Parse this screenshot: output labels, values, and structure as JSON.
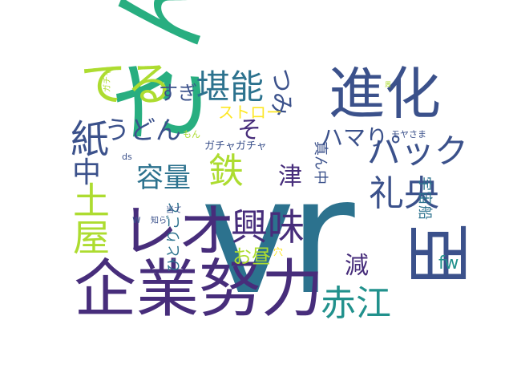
{
  "colors": {
    "background": "#ffffff",
    "dark_purple": "#472d7b",
    "indigo": "#3b518b",
    "blue": "#2c728e",
    "teal": "#21918c",
    "green": "#28ae80",
    "light_green": "#5ec962",
    "yellow_green": "#addc30",
    "yellow": "#fde725"
  },
  "words": [
    {
      "text": "vr",
      "color": "#2c728e"
    },
    {
      "text": "さん",
      "color": "#28ae80"
    },
    {
      "text": "企業努力",
      "color": "#472d7b"
    },
    {
      "text": "進化",
      "color": "#3b518b"
    },
    {
      "text": "レオ",
      "color": "#472d7b"
    },
    {
      "text": "てる",
      "color": "#addc30"
    },
    {
      "text": "臣",
      "color": "#3b518b"
    },
    {
      "text": "土屋",
      "color": "#addc30"
    },
    {
      "text": "興味",
      "color": "#472d7b"
    },
    {
      "text": "堪能",
      "color": "#2c728e"
    },
    {
      "text": "紙",
      "color": "#3b518b"
    },
    {
      "text": "パック",
      "color": "#3b518b"
    },
    {
      "text": "礼央",
      "color": "#3b518b"
    },
    {
      "text": "赤江",
      "color": "#21918c"
    },
    {
      "text": "鉄",
      "color": "#addc30"
    },
    {
      "text": "容量",
      "color": "#2c728e"
    },
    {
      "text": "うどん",
      "color": "#3b518b"
    },
    {
      "text": "中",
      "color": "#3b518b"
    },
    {
      "text": "つみ",
      "color": "#3b518b"
    },
    {
      "text": "そ",
      "color": "#472d7b"
    },
    {
      "text": "津",
      "color": "#472d7b"
    },
    {
      "text": "ハマり",
      "color": "#3b518b"
    },
    {
      "text": "すぎ",
      "color": "#3b518b"
    },
    {
      "text": "ストロー",
      "color": "#fde725"
    },
    {
      "text": "減",
      "color": "#472d7b"
    },
    {
      "text": "お昼",
      "color": "#addc30"
    },
    {
      "text": "真ん中",
      "color": "#3b518b"
    },
    {
      "text": "宇宙船",
      "color": "#2c728e"
    },
    {
      "text": "ひとりごと",
      "color": "#2c728e"
    },
    {
      "text": "fw",
      "color": "#21918c"
    },
    {
      "text": "ガチャガチャ",
      "color": "#3b518b"
    },
    {
      "text": "モヤさま",
      "color": "#3b518b"
    },
    {
      "text": "もん",
      "color": "#addc30"
    },
    {
      "text": "ガチャ",
      "color": "#addc30"
    },
    {
      "text": "ds",
      "color": "#3b518b"
    },
    {
      "text": "w",
      "color": "#3b518b"
    },
    {
      "text": "知ら",
      "color": "#3b518b"
    },
    {
      "text": "当て",
      "color": "#3b518b"
    },
    {
      "text": "穴",
      "color": "#fde725"
    },
    {
      "text": "周",
      "color": "#addc30"
    }
  ]
}
